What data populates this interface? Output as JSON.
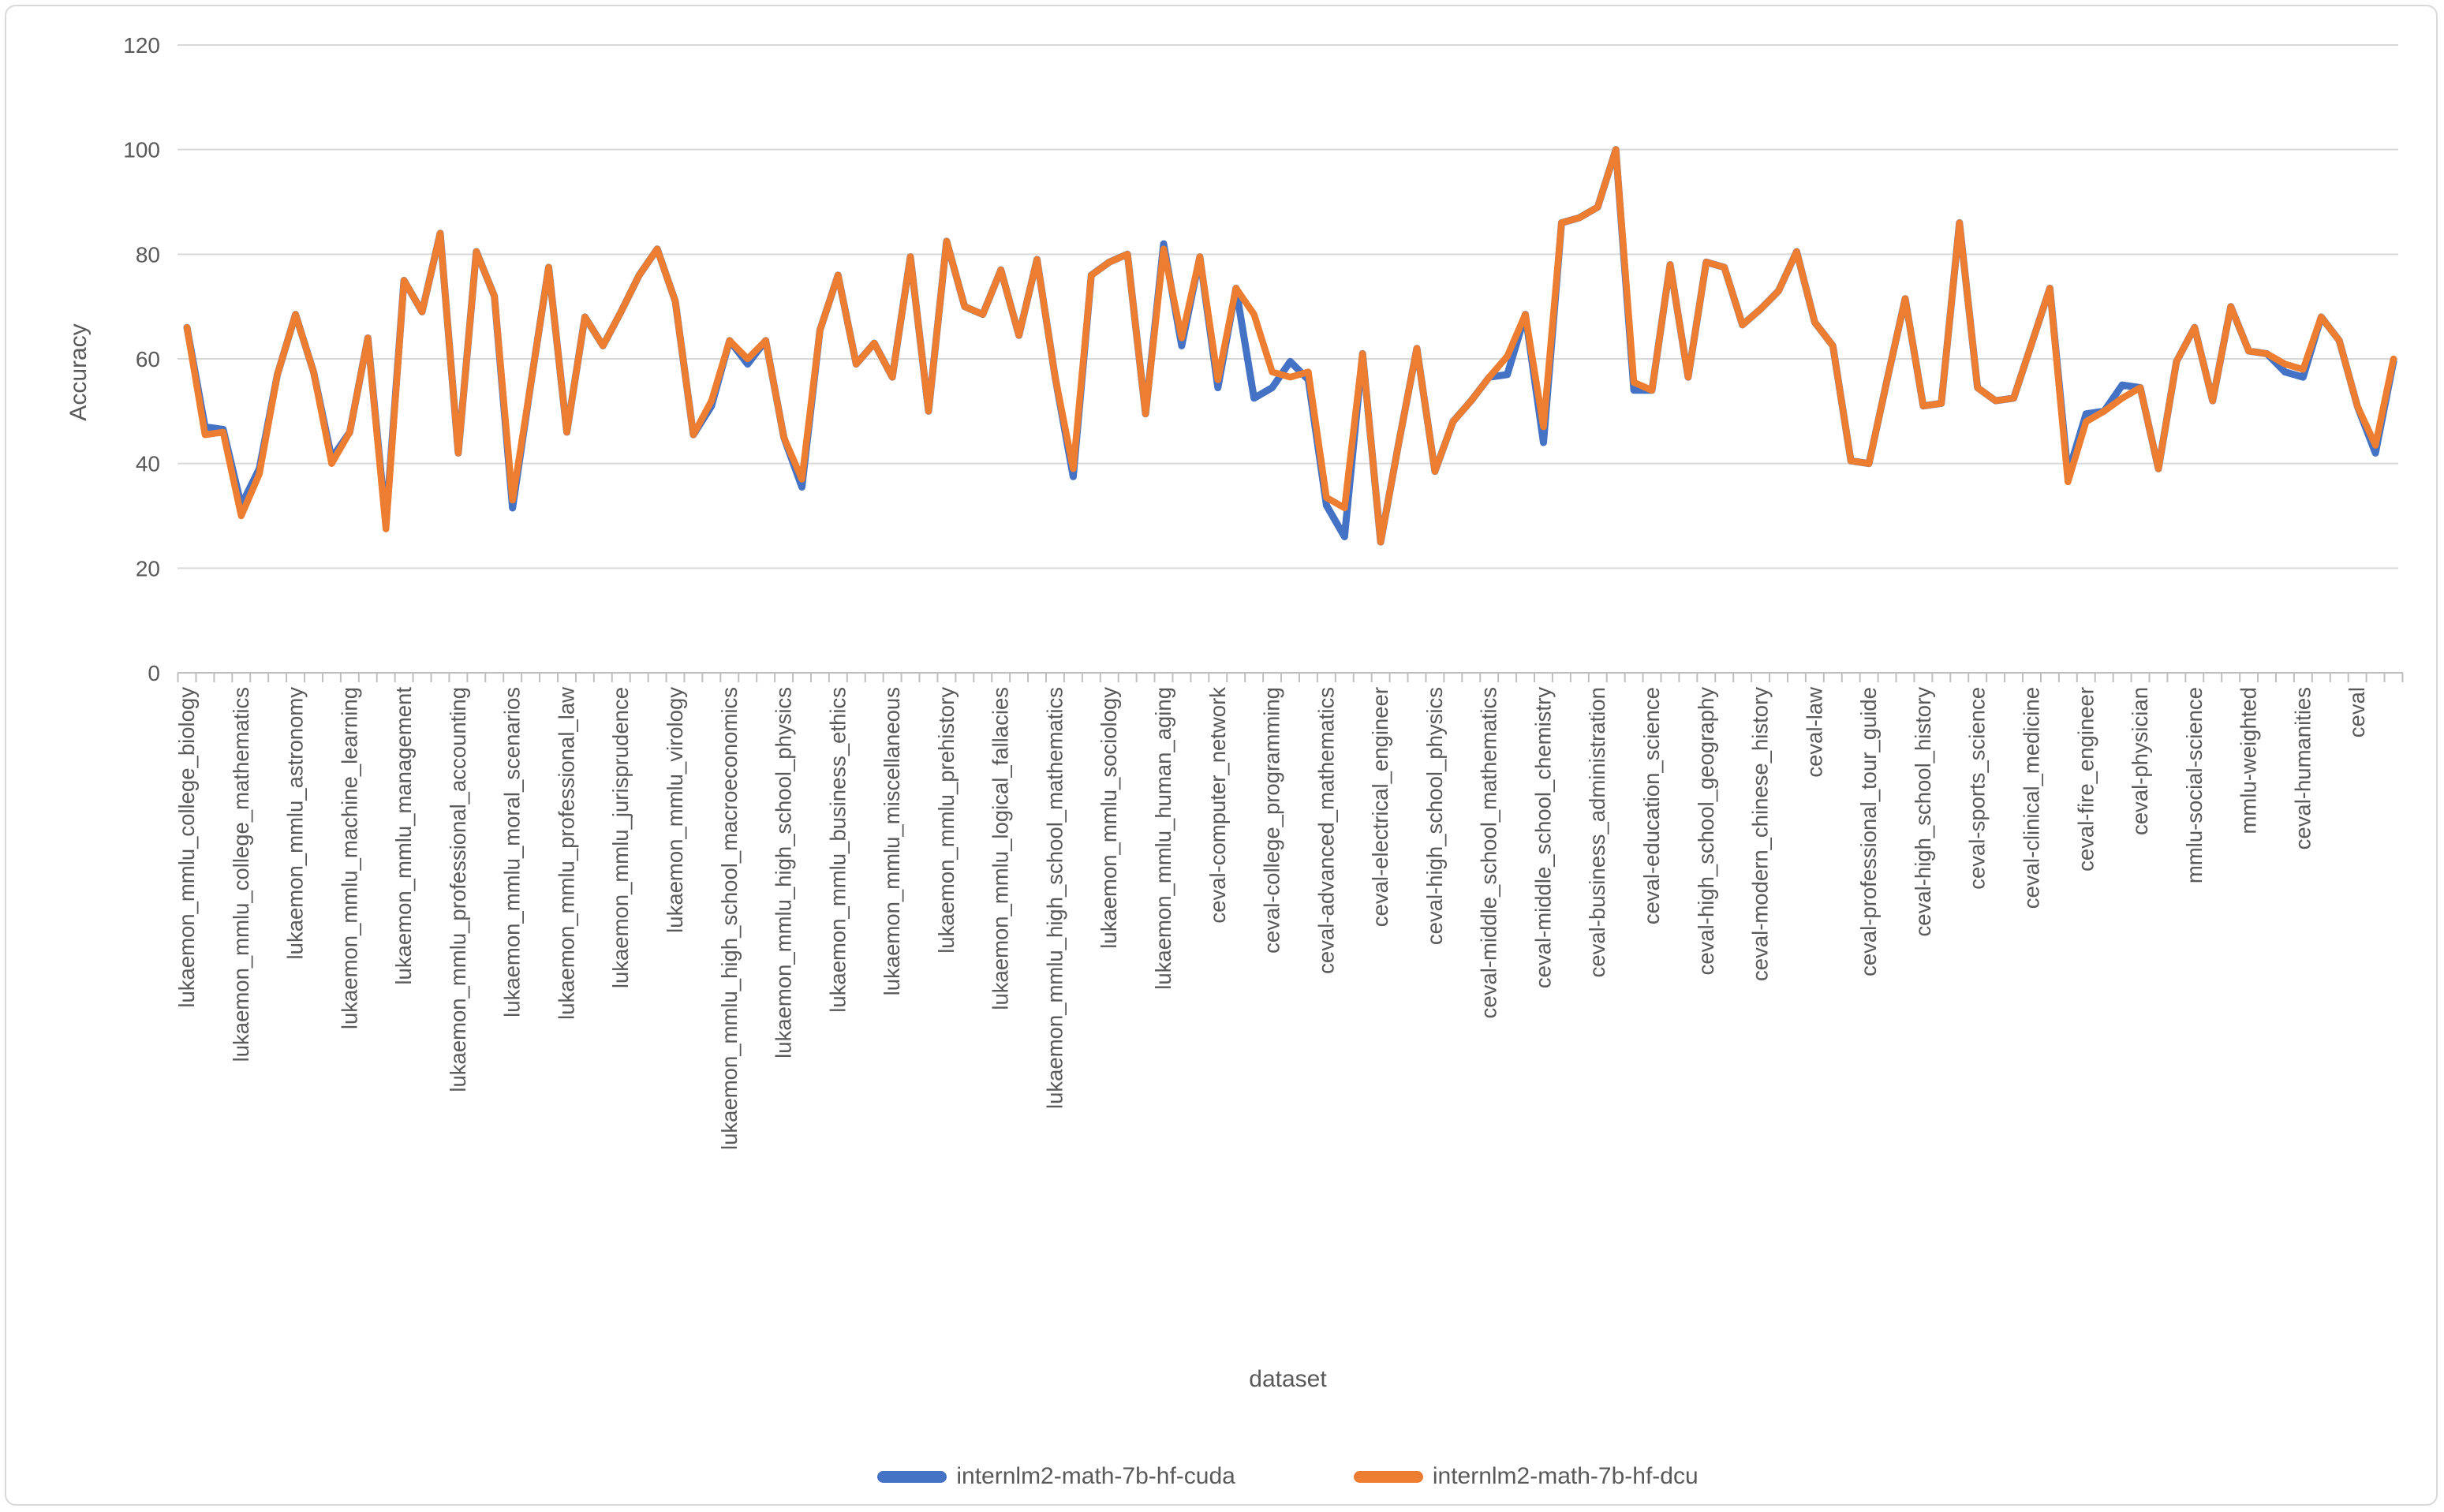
{
  "window": {
    "background": "#ffffff",
    "frame_border_color": "#D9D9D9"
  },
  "chart_data": {
    "type": "line",
    "title": "",
    "xlabel": "dataset",
    "ylabel": "Accuracy",
    "ylim": [
      0,
      120
    ],
    "yticks": [
      0,
      20,
      40,
      60,
      80,
      100,
      120
    ],
    "grid": true,
    "gridline_color": "#D9D9D9",
    "axis_line_color": "#BFBFBF",
    "text_color": "#595959",
    "legend_position": "bottom",
    "x_label_interval": 3,
    "x_tick_labels": [
      "lukaemon_mmlu_college_biology",
      "lukaemon_mmlu_college_mathematics",
      "lukaemon_mmlu_astronomy",
      "lukaemon_mmlu_machine_learning",
      "lukaemon_mmlu_management",
      "lukaemon_mmlu_professional_accounting",
      "lukaemon_mmlu_moral_scenarios",
      "lukaemon_mmlu_professional_law",
      "lukaemon_mmlu_jurisprudence",
      "lukaemon_mmlu_virology",
      "lukaemon_mmlu_high_school_macroeconomics",
      "lukaemon_mmlu_high_school_physics",
      "lukaemon_mmlu_business_ethics",
      "lukaemon_mmlu_miscellaneous",
      "lukaemon_mmlu_prehistory",
      "lukaemon_mmlu_logical_fallacies",
      "lukaemon_mmlu_high_school_mathematics",
      "lukaemon_mmlu_sociology",
      "lukaemon_mmlu_human_aging",
      "ceval-computer_network",
      "ceval-college_programming",
      "ceval-advanced_mathematics",
      "ceval-electrical_engineer",
      "ceval-high_school_physics",
      "ceval-middle_school_mathematics",
      "ceval-middle_school_chemistry",
      "ceval-business_administration",
      "ceval-education_science",
      "ceval-high_school_geography",
      "ceval-modern_chinese_history",
      "ceval-law",
      "ceval-professional_tour_guide",
      "ceval-high_school_history",
      "ceval-sports_science",
      "ceval-clinical_medicine",
      "ceval-fire_engineer",
      "ceval-physician",
      "mmlu-social-science",
      "mmlu-weighted",
      "ceval-humanities",
      "ceval"
    ],
    "series": [
      {
        "name": "internlm2-math-7b-hf-cuda",
        "color": "#4472C4",
        "values": [
          66,
          47,
          46.5,
          32,
          39,
          57,
          68.5,
          57.5,
          41,
          46,
          64,
          28.5,
          75,
          69,
          84,
          42,
          80.5,
          72,
          31.5,
          55,
          77.5,
          46,
          68,
          62.5,
          69,
          76,
          81,
          71,
          45.5,
          51,
          63.5,
          59,
          63.5,
          45,
          35.5,
          65.5,
          76,
          59,
          63,
          56.5,
          79.5,
          50,
          82.5,
          70,
          68.5,
          77,
          64.5,
          79,
          56.5,
          37.5,
          76,
          78.5,
          80,
          49.5,
          82,
          62.5,
          79.5,
          54.5,
          73.5,
          52.5,
          54.5,
          59.5,
          56,
          32,
          26,
          61,
          25,
          44,
          62,
          38.5,
          48,
          52,
          56.5,
          57,
          68.5,
          44,
          86,
          87,
          89,
          100,
          54,
          54,
          78,
          56.5,
          78.5,
          77.5,
          66.5,
          69.5,
          73,
          80.5,
          67,
          62.5,
          40.5,
          40,
          56,
          71.5,
          51,
          51.5,
          86,
          54.5,
          52,
          52.5,
          63,
          73.5,
          38,
          49.5,
          50,
          55,
          54.5,
          39,
          59.5,
          66,
          52,
          70,
          61.5,
          61,
          57.5,
          56.5,
          68,
          63.5,
          51,
          42,
          59.5
        ]
      },
      {
        "name": "internlm2-math-7b-hf-dcu",
        "color": "#ED7D31",
        "values": [
          66,
          45.5,
          46,
          30,
          38,
          57,
          68.5,
          57.5,
          40,
          46,
          64,
          27.5,
          75,
          69,
          84,
          42,
          80.5,
          72,
          33,
          55,
          77.5,
          46,
          68,
          62.5,
          69,
          76,
          81,
          71,
          45.5,
          52,
          63.5,
          60,
          63.5,
          45,
          37,
          65.5,
          76,
          59,
          63,
          56.5,
          79.5,
          50,
          82.5,
          70,
          68.5,
          77,
          64.5,
          79,
          56.5,
          39,
          76,
          78.5,
          80,
          49.5,
          81,
          64,
          79.5,
          56,
          73.5,
          68.5,
          57.5,
          56.5,
          57.5,
          33.5,
          31.5,
          61,
          25,
          44,
          62,
          38.5,
          48,
          52,
          56.5,
          60.5,
          68.5,
          47,
          86,
          87,
          89,
          100,
          55.5,
          54,
          78,
          56.5,
          78.5,
          77.5,
          66.5,
          69.5,
          73,
          80.5,
          67,
          62.5,
          40.5,
          40,
          56,
          71.5,
          51,
          51.5,
          86,
          54.5,
          52,
          52.5,
          63,
          73.5,
          36.5,
          48,
          50,
          52.5,
          54.5,
          39,
          59.5,
          66,
          52,
          70,
          61.5,
          61,
          59,
          58,
          68,
          63.5,
          51,
          43.5,
          60
        ]
      }
    ]
  }
}
